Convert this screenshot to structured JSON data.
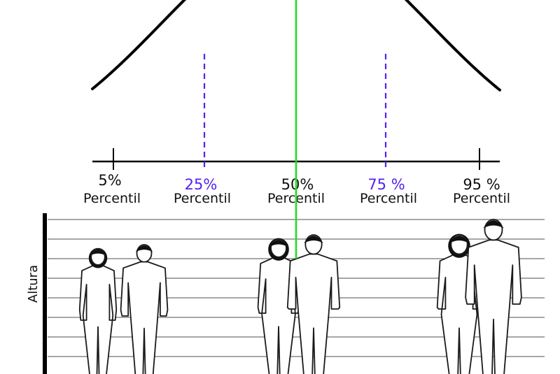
{
  "colors": {
    "curve": "#000000",
    "median_line": "#22dd22",
    "quartile_accent": "#5522ee",
    "text": "#111111",
    "gridline": "#8a8a8a"
  },
  "percentiles": [
    {
      "value": "5%",
      "label": "Percentil",
      "accent": false
    },
    {
      "value": "25%",
      "label": "Percentil",
      "accent": true
    },
    {
      "value": "50%",
      "label": "Percentil",
      "accent": false
    },
    {
      "value": "75 %",
      "label": "Percentil",
      "accent": true
    },
    {
      "value": "95 %",
      "label": "Percentil",
      "accent": false
    }
  ],
  "height_axis": {
    "title": "Altura"
  },
  "figures": [
    {
      "group": "5%",
      "gender": "female"
    },
    {
      "group": "5%",
      "gender": "male"
    },
    {
      "group": "50%",
      "gender": "female"
    },
    {
      "group": "50%",
      "gender": "male"
    },
    {
      "group": "95%",
      "gender": "female"
    },
    {
      "group": "95%",
      "gender": "male"
    }
  ]
}
